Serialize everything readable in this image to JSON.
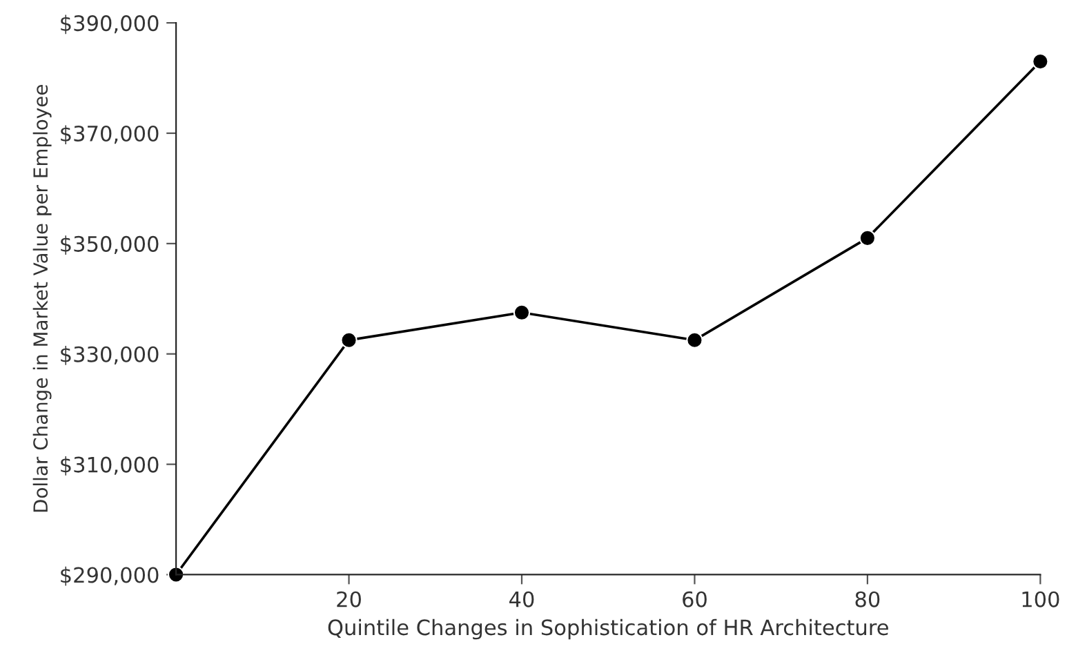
{
  "chart_data": {
    "type": "line",
    "xlabel": "Quintile Changes in Sophistication of HR Architecture",
    "ylabel": "Dollar Change in Market Value per Employee",
    "x": [
      0,
      20,
      40,
      60,
      80,
      100
    ],
    "series": [
      {
        "color": "#000000",
        "values": [
          290000,
          332500,
          337500,
          332500,
          351000,
          383000
        ]
      }
    ],
    "xlim": [
      0,
      100
    ],
    "xticks": [
      20,
      40,
      60,
      80,
      100
    ],
    "ylim": [
      290000,
      390000
    ],
    "yticks": [
      {
        "value": 290000,
        "label": "$290,000"
      },
      {
        "value": 310000,
        "label": "$310,000"
      },
      {
        "value": 330000,
        "label": "$330,000"
      },
      {
        "value": 350000,
        "label": "$350,000"
      },
      {
        "value": 370000,
        "label": "$370,000"
      },
      {
        "value": 390000,
        "label": "$390,000"
      }
    ],
    "grid": false,
    "marker": "circle",
    "line_style": "solid"
  }
}
